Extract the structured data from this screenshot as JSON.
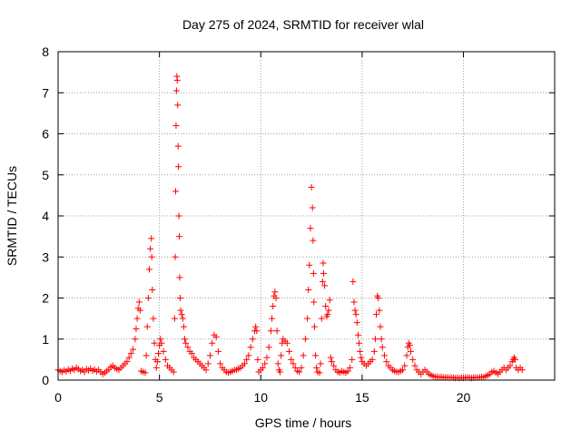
{
  "chart_data": {
    "type": "scatter",
    "title": "Day 275 of 2024, SRMTID for receiver wlal",
    "xlabel": "GPS time / hours",
    "ylabel": "SRMTID / TECUs",
    "xlim": [
      0,
      24.5
    ],
    "ylim": [
      0,
      8
    ],
    "xticks": [
      0,
      5,
      10,
      15,
      20
    ],
    "yticks": [
      0,
      1,
      2,
      3,
      4,
      5,
      6,
      7,
      8
    ],
    "grid": true,
    "marker": "+",
    "series_color": "#ff0000",
    "series": [
      {
        "name": "SRMTID",
        "points": [
          [
            0.0,
            0.25
          ],
          [
            0.1,
            0.22
          ],
          [
            0.2,
            0.2
          ],
          [
            0.3,
            0.24
          ],
          [
            0.4,
            0.21
          ],
          [
            0.5,
            0.26
          ],
          [
            0.6,
            0.23
          ],
          [
            0.7,
            0.28
          ],
          [
            0.8,
            0.25
          ],
          [
            0.9,
            0.3
          ],
          [
            1.0,
            0.27
          ],
          [
            1.1,
            0.22
          ],
          [
            1.2,
            0.25
          ],
          [
            1.3,
            0.2
          ],
          [
            1.4,
            0.27
          ],
          [
            1.5,
            0.24
          ],
          [
            1.6,
            0.28
          ],
          [
            1.7,
            0.23
          ],
          [
            1.8,
            0.26
          ],
          [
            1.9,
            0.21
          ],
          [
            2.0,
            0.25
          ],
          [
            2.1,
            0.2
          ],
          [
            2.2,
            0.15
          ],
          [
            2.3,
            0.18
          ],
          [
            2.4,
            0.22
          ],
          [
            2.5,
            0.26
          ],
          [
            2.6,
            0.32
          ],
          [
            2.7,
            0.35
          ],
          [
            2.8,
            0.3
          ],
          [
            2.9,
            0.27
          ],
          [
            3.0,
            0.25
          ],
          [
            3.1,
            0.3
          ],
          [
            3.2,
            0.35
          ],
          [
            3.3,
            0.4
          ],
          [
            3.4,
            0.45
          ],
          [
            3.5,
            0.55
          ],
          [
            3.6,
            0.65
          ],
          [
            3.7,
            0.75
          ],
          [
            3.8,
            1.0
          ],
          [
            3.85,
            1.25
          ],
          [
            3.9,
            1.5
          ],
          [
            3.95,
            1.75
          ],
          [
            4.0,
            1.9
          ],
          [
            4.05,
            1.7
          ],
          [
            4.1,
            0.22
          ],
          [
            4.2,
            0.2
          ],
          [
            4.3,
            0.18
          ],
          [
            4.35,
            0.6
          ],
          [
            4.4,
            1.3
          ],
          [
            4.45,
            2.0
          ],
          [
            4.5,
            2.7
          ],
          [
            4.55,
            3.2
          ],
          [
            4.6,
            3.45
          ],
          [
            4.62,
            3.0
          ],
          [
            4.65,
            2.2
          ],
          [
            4.7,
            1.5
          ],
          [
            4.75,
            0.9
          ],
          [
            4.8,
            0.5
          ],
          [
            4.85,
            0.3
          ],
          [
            4.9,
            0.45
          ],
          [
            4.95,
            0.65
          ],
          [
            5.0,
            0.85
          ],
          [
            5.05,
            1.0
          ],
          [
            5.1,
            0.9
          ],
          [
            5.2,
            0.7
          ],
          [
            5.3,
            0.5
          ],
          [
            5.4,
            0.35
          ],
          [
            5.5,
            0.3
          ],
          [
            5.6,
            0.25
          ],
          [
            5.7,
            0.2
          ],
          [
            5.75,
            1.5
          ],
          [
            5.78,
            3.0
          ],
          [
            5.8,
            4.6
          ],
          [
            5.82,
            6.2
          ],
          [
            5.84,
            7.05
          ],
          [
            5.86,
            7.4
          ],
          [
            5.88,
            7.3
          ],
          [
            5.9,
            6.7
          ],
          [
            5.92,
            5.7
          ],
          [
            5.94,
            5.2
          ],
          [
            5.96,
            4.0
          ],
          [
            5.98,
            3.5
          ],
          [
            6.0,
            2.5
          ],
          [
            6.02,
            2.0
          ],
          [
            6.05,
            1.7
          ],
          [
            6.1,
            1.6
          ],
          [
            6.15,
            1.5
          ],
          [
            6.2,
            1.3
          ],
          [
            6.25,
            1.0
          ],
          [
            6.3,
            0.9
          ],
          [
            6.4,
            0.8
          ],
          [
            6.5,
            0.7
          ],
          [
            6.6,
            0.65
          ],
          [
            6.7,
            0.55
          ],
          [
            6.8,
            0.5
          ],
          [
            6.9,
            0.45
          ],
          [
            7.0,
            0.4
          ],
          [
            7.1,
            0.35
          ],
          [
            7.2,
            0.3
          ],
          [
            7.3,
            0.25
          ],
          [
            7.4,
            0.4
          ],
          [
            7.5,
            0.6
          ],
          [
            7.6,
            0.9
          ],
          [
            7.7,
            1.1
          ],
          [
            7.8,
            1.05
          ],
          [
            7.9,
            0.7
          ],
          [
            8.0,
            0.4
          ],
          [
            8.1,
            0.3
          ],
          [
            8.2,
            0.25
          ],
          [
            8.3,
            0.2
          ],
          [
            8.4,
            0.18
          ],
          [
            8.5,
            0.2
          ],
          [
            8.6,
            0.22
          ],
          [
            8.7,
            0.25
          ],
          [
            8.8,
            0.25
          ],
          [
            8.9,
            0.28
          ],
          [
            9.0,
            0.3
          ],
          [
            9.1,
            0.35
          ],
          [
            9.2,
            0.4
          ],
          [
            9.3,
            0.5
          ],
          [
            9.4,
            0.6
          ],
          [
            9.5,
            0.8
          ],
          [
            9.6,
            1.0
          ],
          [
            9.7,
            1.2
          ],
          [
            9.75,
            1.3
          ],
          [
            9.8,
            1.2
          ],
          [
            9.85,
            0.5
          ],
          [
            9.9,
            0.2
          ],
          [
            10.0,
            0.25
          ],
          [
            10.1,
            0.3
          ],
          [
            10.2,
            0.4
          ],
          [
            10.3,
            0.55
          ],
          [
            10.4,
            0.8
          ],
          [
            10.5,
            1.2
          ],
          [
            10.55,
            1.5
          ],
          [
            10.6,
            1.8
          ],
          [
            10.65,
            2.05
          ],
          [
            10.7,
            2.15
          ],
          [
            10.75,
            2.0
          ],
          [
            10.8,
            1.2
          ],
          [
            10.85,
            0.4
          ],
          [
            10.9,
            0.25
          ],
          [
            10.95,
            0.2
          ],
          [
            11.0,
            0.6
          ],
          [
            11.05,
            0.9
          ],
          [
            11.1,
            1.0
          ],
          [
            11.2,
            0.95
          ],
          [
            11.3,
            0.9
          ],
          [
            11.4,
            0.7
          ],
          [
            11.5,
            0.5
          ],
          [
            11.6,
            0.4
          ],
          [
            11.7,
            0.3
          ],
          [
            11.8,
            0.22
          ],
          [
            11.9,
            0.2
          ],
          [
            12.0,
            0.3
          ],
          [
            12.1,
            0.6
          ],
          [
            12.2,
            1.0
          ],
          [
            12.3,
            1.5
          ],
          [
            12.35,
            2.2
          ],
          [
            12.4,
            2.8
          ],
          [
            12.45,
            3.7
          ],
          [
            12.5,
            4.7
          ],
          [
            12.55,
            4.2
          ],
          [
            12.58,
            3.4
          ],
          [
            12.6,
            2.6
          ],
          [
            12.62,
            1.9
          ],
          [
            12.65,
            1.3
          ],
          [
            12.7,
            0.6
          ],
          [
            12.75,
            0.3
          ],
          [
            12.8,
            0.2
          ],
          [
            12.9,
            0.18
          ],
          [
            12.95,
            0.4
          ],
          [
            13.0,
            1.5
          ],
          [
            13.05,
            2.4
          ],
          [
            13.08,
            2.85
          ],
          [
            13.1,
            2.6
          ],
          [
            13.15,
            2.3
          ],
          [
            13.2,
            1.8
          ],
          [
            13.25,
            1.55
          ],
          [
            13.3,
            1.6
          ],
          [
            13.35,
            1.7
          ],
          [
            13.4,
            1.95
          ],
          [
            13.45,
            0.55
          ],
          [
            13.5,
            0.45
          ],
          [
            13.6,
            0.35
          ],
          [
            13.7,
            0.25
          ],
          [
            13.8,
            0.2
          ],
          [
            13.9,
            0.18
          ],
          [
            14.0,
            0.22
          ],
          [
            14.1,
            0.2
          ],
          [
            14.2,
            0.18
          ],
          [
            14.3,
            0.22
          ],
          [
            14.4,
            0.3
          ],
          [
            14.5,
            0.5
          ],
          [
            14.55,
            2.4
          ],
          [
            14.6,
            1.9
          ],
          [
            14.65,
            1.7
          ],
          [
            14.7,
            1.6
          ],
          [
            14.75,
            1.4
          ],
          [
            14.8,
            1.1
          ],
          [
            14.85,
            0.9
          ],
          [
            14.9,
            0.7
          ],
          [
            14.95,
            0.55
          ],
          [
            15.0,
            0.45
          ],
          [
            15.1,
            0.4
          ],
          [
            15.2,
            0.35
          ],
          [
            15.3,
            0.4
          ],
          [
            15.4,
            0.45
          ],
          [
            15.5,
            0.5
          ],
          [
            15.6,
            0.7
          ],
          [
            15.65,
            1.0
          ],
          [
            15.7,
            1.6
          ],
          [
            15.75,
            2.05
          ],
          [
            15.8,
            2.0
          ],
          [
            15.85,
            1.7
          ],
          [
            15.9,
            1.3
          ],
          [
            15.95,
            1.0
          ],
          [
            16.0,
            0.8
          ],
          [
            16.1,
            0.6
          ],
          [
            16.2,
            0.45
          ],
          [
            16.3,
            0.35
          ],
          [
            16.4,
            0.3
          ],
          [
            16.5,
            0.25
          ],
          [
            16.6,
            0.22
          ],
          [
            16.7,
            0.2
          ],
          [
            16.8,
            0.2
          ],
          [
            16.9,
            0.22
          ],
          [
            17.0,
            0.25
          ],
          [
            17.1,
            0.35
          ],
          [
            17.2,
            0.6
          ],
          [
            17.25,
            0.8
          ],
          [
            17.3,
            0.9
          ],
          [
            17.35,
            0.85
          ],
          [
            17.4,
            0.7
          ],
          [
            17.5,
            0.5
          ],
          [
            17.6,
            0.35
          ],
          [
            17.7,
            0.25
          ],
          [
            17.8,
            0.2
          ],
          [
            17.9,
            0.15
          ],
          [
            18.0,
            0.2
          ],
          [
            18.1,
            0.25
          ],
          [
            18.2,
            0.2
          ],
          [
            18.3,
            0.15
          ],
          [
            18.4,
            0.12
          ],
          [
            18.5,
            0.1
          ],
          [
            18.6,
            0.08
          ],
          [
            18.7,
            0.08
          ],
          [
            18.8,
            0.07
          ],
          [
            18.9,
            0.08
          ],
          [
            19.0,
            0.07
          ],
          [
            19.1,
            0.06
          ],
          [
            19.2,
            0.07
          ],
          [
            19.3,
            0.06
          ],
          [
            19.4,
            0.07
          ],
          [
            19.5,
            0.06
          ],
          [
            19.6,
            0.05
          ],
          [
            19.7,
            0.06
          ],
          [
            19.8,
            0.05
          ],
          [
            19.9,
            0.06
          ],
          [
            20.0,
            0.05
          ],
          [
            20.1,
            0.06
          ],
          [
            20.2,
            0.07
          ],
          [
            20.3,
            0.06
          ],
          [
            20.4,
            0.05
          ],
          [
            20.5,
            0.06
          ],
          [
            20.6,
            0.07
          ],
          [
            20.7,
            0.06
          ],
          [
            20.8,
            0.07
          ],
          [
            20.9,
            0.08
          ],
          [
            21.0,
            0.07
          ],
          [
            21.1,
            0.1
          ],
          [
            21.2,
            0.12
          ],
          [
            21.3,
            0.15
          ],
          [
            21.4,
            0.2
          ],
          [
            21.5,
            0.22
          ],
          [
            21.6,
            0.18
          ],
          [
            21.7,
            0.15
          ],
          [
            21.8,
            0.2
          ],
          [
            21.9,
            0.25
          ],
          [
            22.0,
            0.3
          ],
          [
            22.1,
            0.25
          ],
          [
            22.2,
            0.3
          ],
          [
            22.3,
            0.35
          ],
          [
            22.4,
            0.45
          ],
          [
            22.45,
            0.5
          ],
          [
            22.5,
            0.55
          ],
          [
            22.55,
            0.5
          ],
          [
            22.6,
            0.3
          ],
          [
            22.7,
            0.25
          ],
          [
            22.8,
            0.3
          ],
          [
            22.9,
            0.25
          ]
        ]
      }
    ]
  }
}
